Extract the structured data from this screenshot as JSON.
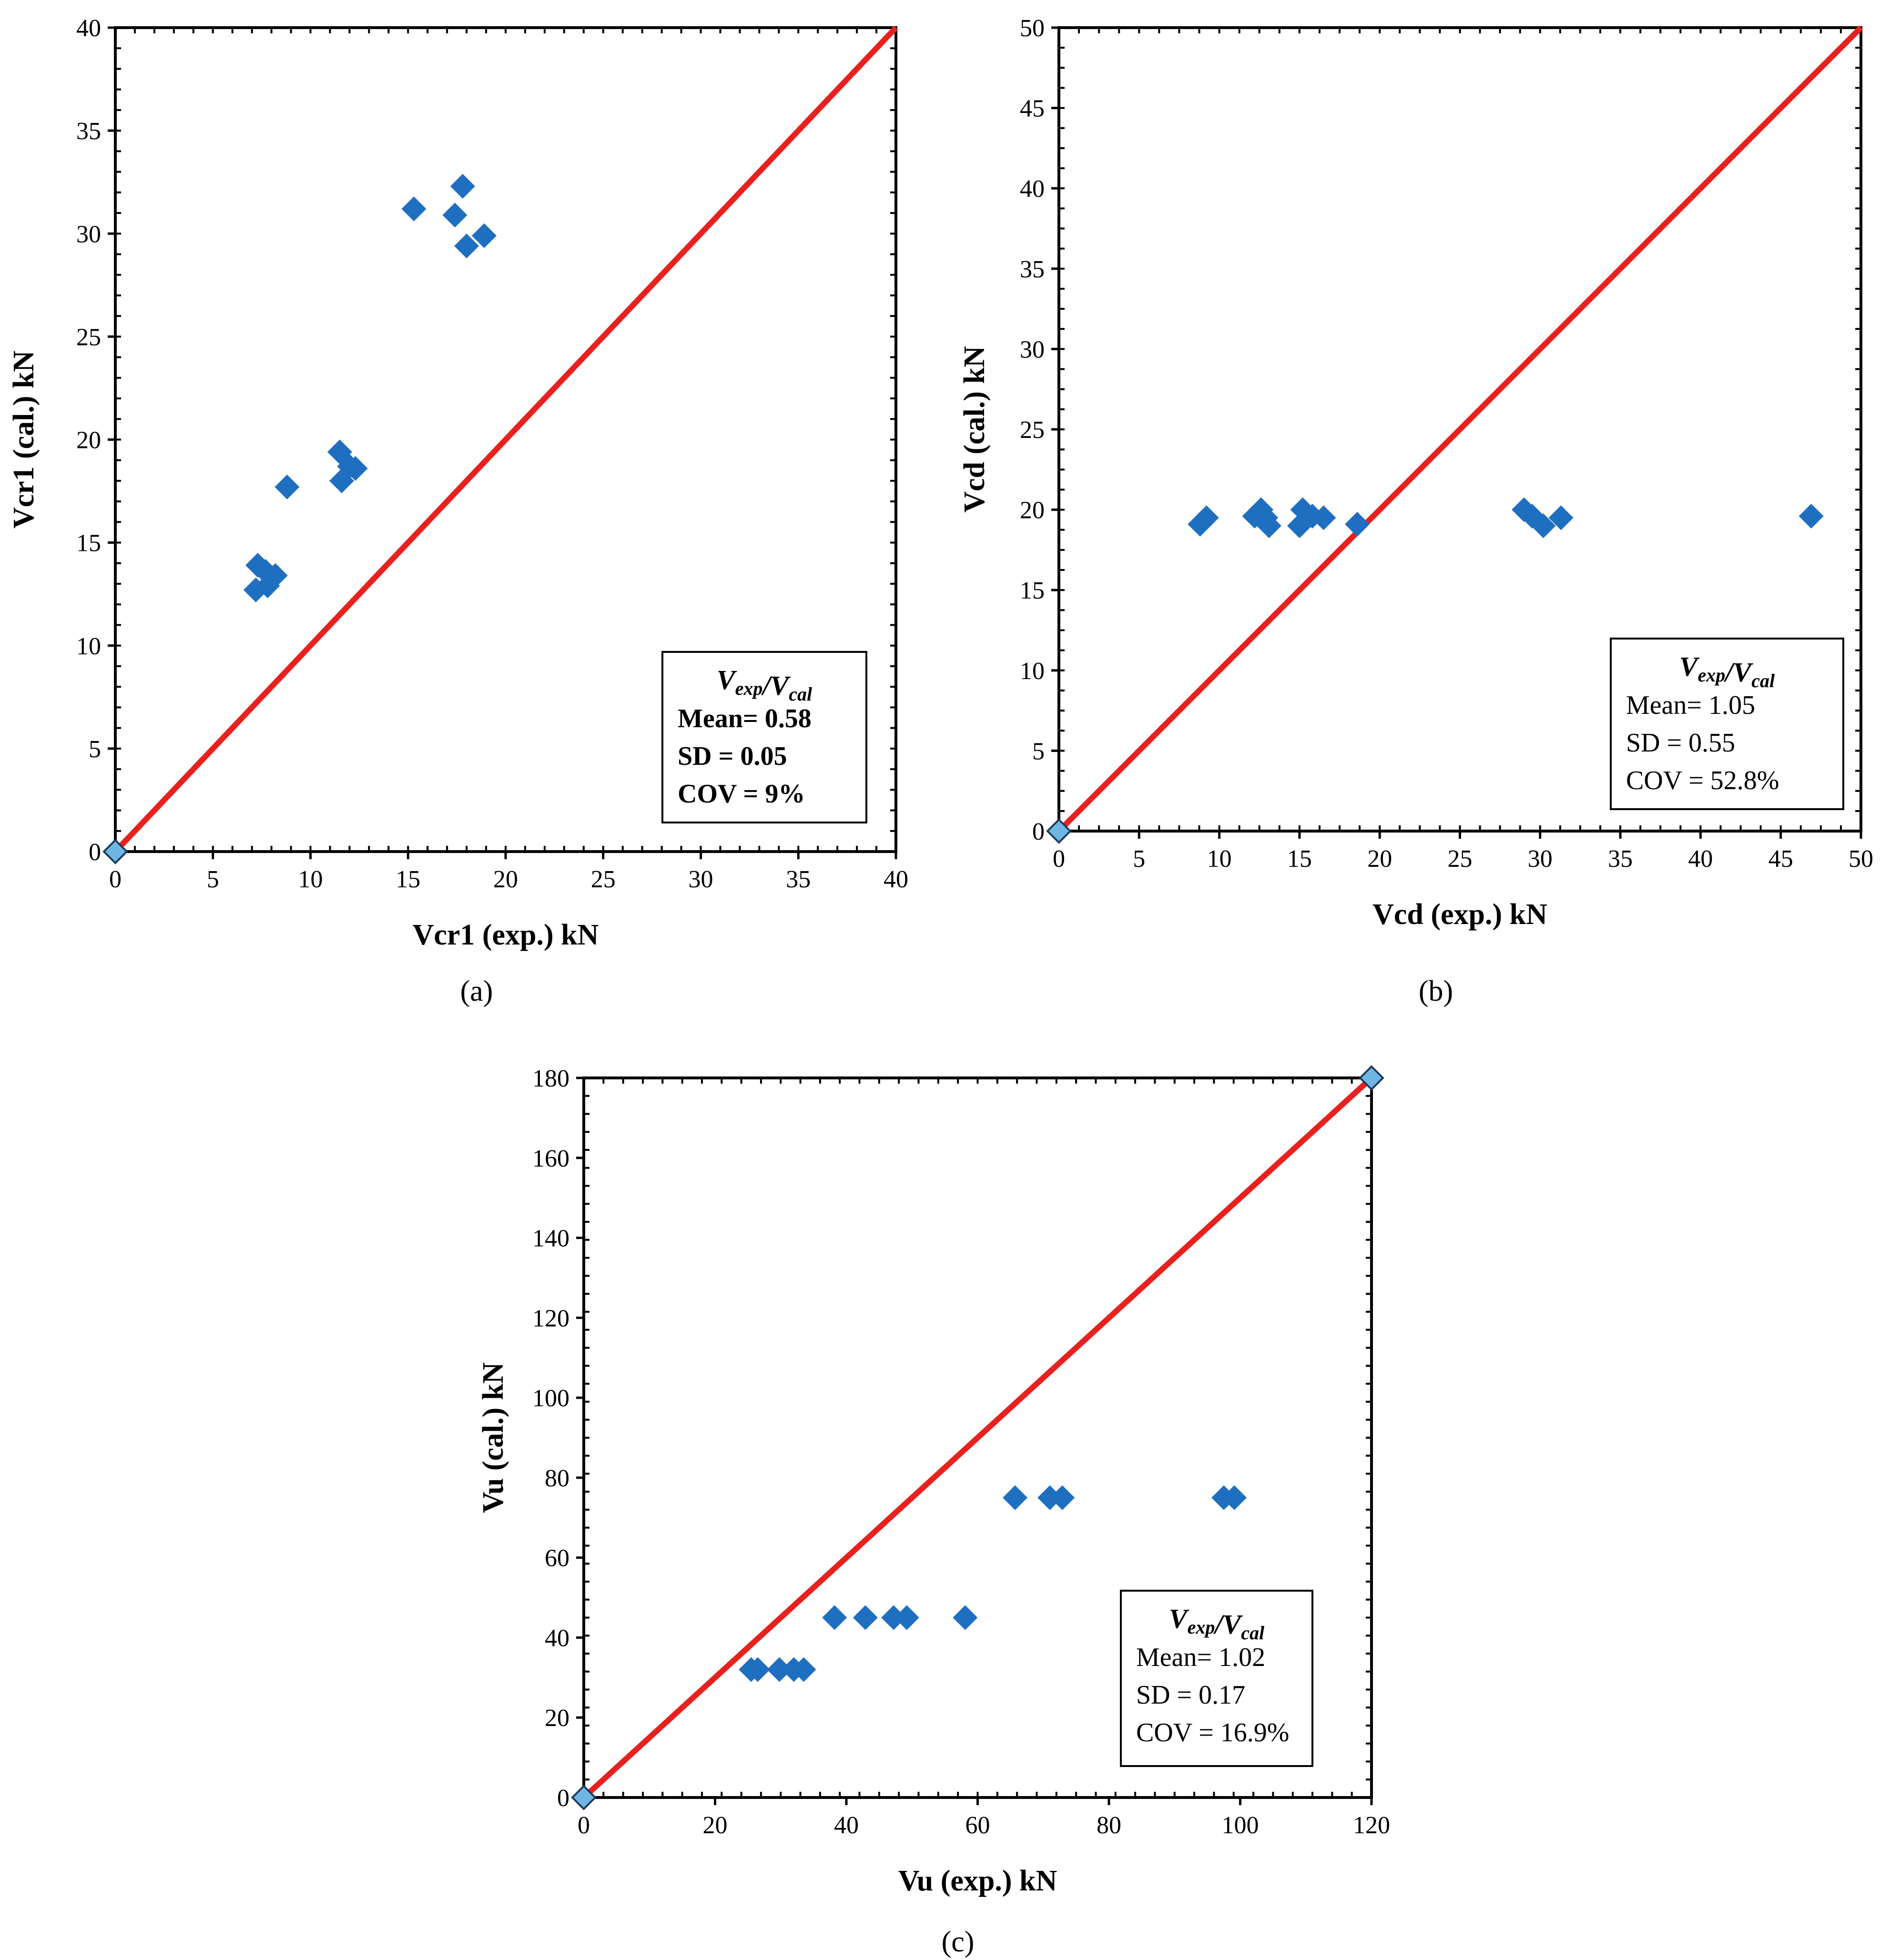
{
  "chart_data": [
    {
      "id": "a",
      "type": "scatter",
      "caption": "(a)",
      "xlabel": "Vcr1 (exp.) kN",
      "ylabel": "Vcr1 (cal.) kN",
      "xlim": [
        0,
        40
      ],
      "ylim": [
        0,
        40
      ],
      "xticks": [
        0,
        5,
        10,
        15,
        20,
        25,
        30,
        35,
        40
      ],
      "yticks": [
        0,
        5,
        10,
        15,
        20,
        25,
        30,
        35,
        40
      ],
      "grid": false,
      "reference_line": {
        "from": [
          0,
          0
        ],
        "to": [
          40,
          40
        ],
        "color": "#e8211f"
      },
      "series": [
        {
          "name": "data",
          "color": "#1f6fc1",
          "points": [
            [
              7.3,
              13.9
            ],
            [
              7.2,
              12.7
            ],
            [
              7.7,
              13.6
            ],
            [
              7.8,
              12.9
            ],
            [
              8.2,
              13.4
            ],
            [
              8.8,
              17.7
            ],
            [
              11.5,
              19.4
            ],
            [
              11.6,
              18.0
            ],
            [
              12.0,
              18.7
            ],
            [
              12.3,
              18.6
            ],
            [
              15.3,
              31.2
            ],
            [
              17.4,
              30.9
            ],
            [
              17.8,
              32.3
            ],
            [
              18.0,
              29.4
            ],
            [
              18.9,
              29.9
            ]
          ]
        },
        {
          "name": "origin",
          "color": "#6fb6e3",
          "points": [
            [
              0,
              0
            ]
          ]
        }
      ],
      "stats": {
        "title": "Vexp/Vcal",
        "mean": "Mean= 0.58",
        "sd": "SD = 0.05",
        "cov": "COV = 9%"
      }
    },
    {
      "id": "b",
      "type": "scatter",
      "caption": "(b)",
      "xlabel": "Vcd (exp.) kN",
      "ylabel": "Vcd (cal.) kN",
      "xlim": [
        0,
        50
      ],
      "ylim": [
        0,
        50
      ],
      "xticks": [
        0,
        5,
        10,
        15,
        20,
        25,
        30,
        35,
        40,
        45,
        50
      ],
      "yticks": [
        0,
        5,
        10,
        15,
        20,
        25,
        30,
        35,
        40,
        45,
        50
      ],
      "grid": false,
      "reference_line": {
        "from": [
          0,
          0
        ],
        "to": [
          50,
          50
        ],
        "color": "#e8211f"
      },
      "series": [
        {
          "name": "data",
          "color": "#1f6fc1",
          "points": [
            [
              8.8,
              19.1
            ],
            [
              9.2,
              19.5
            ],
            [
              12.2,
              19.6
            ],
            [
              12.6,
              20.0
            ],
            [
              12.9,
              19.5
            ],
            [
              13.1,
              19.0
            ],
            [
              15.0,
              19.0
            ],
            [
              15.2,
              20.0
            ],
            [
              15.8,
              19.6
            ],
            [
              16.5,
              19.5
            ],
            [
              18.6,
              19.1
            ],
            [
              29.0,
              20.0
            ],
            [
              29.5,
              19.6
            ],
            [
              30.2,
              19.0
            ],
            [
              31.3,
              19.5
            ],
            [
              46.9,
              19.6
            ]
          ]
        },
        {
          "name": "origin",
          "color": "#6fb6e3",
          "points": [
            [
              0,
              0
            ]
          ]
        }
      ],
      "stats": {
        "title": "Vexp/Vcal",
        "mean": "Mean= 1.05",
        "sd": "SD = 0.55",
        "cov": "COV = 52.8%"
      }
    },
    {
      "id": "c",
      "type": "scatter",
      "caption": "(c)",
      "xlabel": "Vu (exp.) kN",
      "ylabel": "Vu (cal.) kN",
      "xlim": [
        0,
        120
      ],
      "ylim": [
        0,
        180
      ],
      "xticks": [
        0,
        20,
        40,
        60,
        80,
        100,
        120
      ],
      "yticks": [
        0,
        20,
        40,
        60,
        80,
        100,
        120,
        140,
        160,
        180
      ],
      "grid": false,
      "reference_line": {
        "from": [
          0,
          0
        ],
        "to": [
          120,
          180
        ],
        "color": "#e8211f"
      },
      "series": [
        {
          "name": "data",
          "color": "#1f6fc1",
          "points": [
            [
              25.5,
              32
            ],
            [
              26.5,
              32
            ],
            [
              29.8,
              32
            ],
            [
              32.0,
              32
            ],
            [
              33.5,
              32
            ],
            [
              38.2,
              45
            ],
            [
              42.9,
              45
            ],
            [
              47.2,
              45
            ],
            [
              49.2,
              45
            ],
            [
              58.1,
              45
            ],
            [
              65.7,
              75
            ],
            [
              71.0,
              75
            ],
            [
              72.9,
              75
            ],
            [
              97.5,
              75
            ],
            [
              99.1,
              75
            ]
          ]
        },
        {
          "name": "endpoints",
          "color": "#6fb6e3",
          "points": [
            [
              0,
              0
            ],
            [
              120,
              180
            ]
          ]
        }
      ],
      "stats": {
        "title": "Vexp/Vcal",
        "mean": "Mean= 1.02",
        "sd": "SD = 0.17",
        "cov": "COV = 16.9%"
      }
    }
  ]
}
